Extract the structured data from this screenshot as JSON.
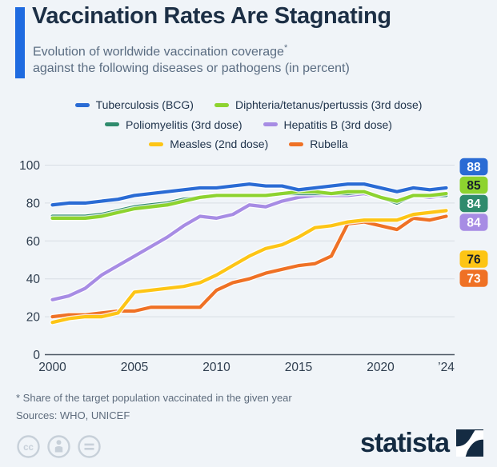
{
  "header": {
    "title": "Vaccination Rates Are Stagnating",
    "subtitle_line1": "Evolution of worldwide vaccination coverage",
    "subtitle_star": "*",
    "subtitle_line2": "against the following diseases or pathogens (in percent)"
  },
  "chart_data": {
    "type": "line",
    "title": "Vaccination Rates Are Stagnating",
    "subtitle": "Evolution of worldwide vaccination coverage* against the following diseases or pathogens (in percent)",
    "xlabel": "",
    "ylabel": "",
    "xlim": [
      2000,
      2024
    ],
    "ylim": [
      0,
      100
    ],
    "grid": true,
    "legend_position": "top-center",
    "yticks": [
      0,
      20,
      40,
      60,
      80,
      100
    ],
    "x_ticks": [
      {
        "x": 2000,
        "label": "2000"
      },
      {
        "x": 2005,
        "label": "2005"
      },
      {
        "x": 2010,
        "label": "2010"
      },
      {
        "x": 2015,
        "label": "2015"
      },
      {
        "x": 2020,
        "label": "2020"
      },
      {
        "x": 2024,
        "label": "’24"
      }
    ],
    "x": [
      2000,
      2001,
      2002,
      2003,
      2004,
      2005,
      2006,
      2007,
      2008,
      2009,
      2010,
      2011,
      2012,
      2013,
      2014,
      2015,
      2016,
      2017,
      2018,
      2019,
      2020,
      2021,
      2022,
      2023,
      2024
    ],
    "series": [
      {
        "name": "Tuberculosis (BCG)",
        "color": "#2a6bd4",
        "end_label": "88",
        "badge_text": "#ffffff",
        "values": [
          79,
          80,
          80,
          81,
          82,
          84,
          85,
          86,
          87,
          88,
          88,
          89,
          90,
          89,
          89,
          87,
          88,
          89,
          90,
          90,
          88,
          86,
          88,
          87,
          88
        ]
      },
      {
        "name": "Diphteria/tetanus/pertussis (3rd dose)",
        "color": "#8dd32f",
        "end_label": "85",
        "badge_text": "#17202b",
        "values": [
          72,
          72,
          72,
          73,
          75,
          77,
          78,
          79,
          81,
          83,
          84,
          84,
          84,
          84,
          85,
          86,
          86,
          85,
          86,
          86,
          83,
          81,
          84,
          84,
          85
        ]
      },
      {
        "name": "Poliomyelitis (3rd dose)",
        "color": "#2f8b6d",
        "end_label": "84",
        "badge_text": "#ffffff",
        "values": [
          73,
          73,
          73,
          74,
          76,
          78,
          79,
          80,
          82,
          83,
          84,
          84,
          84,
          84,
          85,
          85,
          85,
          85,
          85,
          86,
          83,
          80,
          84,
          84,
          84
        ]
      },
      {
        "name": "Hepatitis B (3rd dose)",
        "color": "#a78ce4",
        "end_label": "84",
        "badge_text": "#ffffff",
        "values": [
          29,
          31,
          35,
          42,
          47,
          52,
          57,
          62,
          68,
          73,
          72,
          74,
          79,
          78,
          81,
          83,
          84,
          84,
          84,
          85,
          83,
          80,
          84,
          83,
          84
        ]
      },
      {
        "name": "Measles (2nd dose)",
        "color": "#fdc515",
        "end_label": "76",
        "badge_text": "#17202b",
        "values": [
          17,
          19,
          20,
          20,
          22,
          33,
          34,
          35,
          36,
          38,
          42,
          47,
          52,
          56,
          58,
          62,
          67,
          68,
          70,
          71,
          71,
          71,
          74,
          75,
          76
        ]
      },
      {
        "name": "Rubella",
        "color": "#ef7125",
        "end_label": "73",
        "badge_text": "#ffffff",
        "values": [
          20,
          21,
          21,
          22,
          23,
          23,
          25,
          25,
          25,
          25,
          34,
          38,
          40,
          43,
          45,
          47,
          48,
          52,
          69,
          70,
          68,
          66,
          72,
          71,
          73
        ]
      }
    ]
  },
  "footer": {
    "footnote": "* Share of the target population vaccinated in the given year",
    "sources": "Sources: WHO, UNICEF"
  },
  "branding": {
    "logo_text": "statista",
    "logo_color": "#142b42",
    "accent_color": "#1f6be0"
  }
}
